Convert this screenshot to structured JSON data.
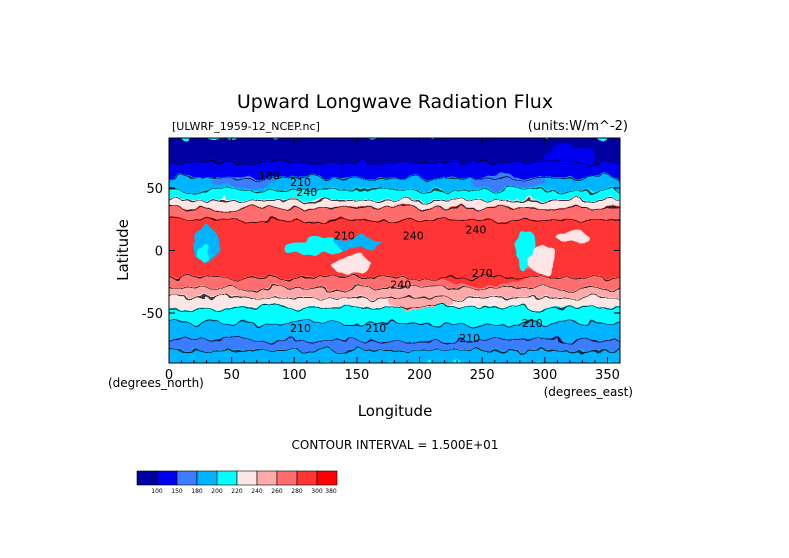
{
  "chart_data": {
    "type": "heatmap",
    "title": "Upward Longwave Radiation Flux",
    "source_label": "[ULWRF_1959-12_NCEP.nc]",
    "units_label": "(units:W/m^-2)",
    "xlabel": "Longitude",
    "ylabel": "Latitude",
    "x_unit_label": "(degrees_east)",
    "y_unit_label": "(degrees_north)",
    "xlim": [
      0,
      360
    ],
    "ylim": [
      -90,
      90
    ],
    "x_ticks": [
      0,
      50,
      100,
      150,
      200,
      250,
      300,
      350
    ],
    "y_ticks": [
      -50,
      0,
      50
    ],
    "contour_interval_text": "CONTOUR INTERVAL = 1.500E+01",
    "contour_labels": [
      {
        "text": "180",
        "lon": 80,
        "lat": 60
      },
      {
        "text": "210",
        "lon": 105,
        "lat": 55
      },
      {
        "text": "240",
        "lon": 110,
        "lat": 47
      },
      {
        "text": "210",
        "lon": 140,
        "lat": 12
      },
      {
        "text": "240",
        "lon": 195,
        "lat": 12
      },
      {
        "text": "240",
        "lon": 245,
        "lat": 17
      },
      {
        "text": "270",
        "lon": 250,
        "lat": -18
      },
      {
        "text": "240",
        "lon": 185,
        "lat": -27
      },
      {
        "text": "210",
        "lon": 105,
        "lat": -62
      },
      {
        "text": "210",
        "lon": 165,
        "lat": -62
      },
      {
        "text": "210",
        "lon": 290,
        "lat": -58
      },
      {
        "text": "210",
        "lon": 240,
        "lat": -70
      }
    ],
    "colorbar": {
      "levels": [
        "100",
        "150",
        "180",
        "200",
        "220",
        "240",
        "260",
        "280",
        "300",
        "380"
      ],
      "colors": [
        "#0000a0",
        "#0000f0",
        "#3a7dff",
        "#00b4ff",
        "#00ffff",
        "#ffe6e6",
        "#ffaaaa",
        "#ff6e6e",
        "#ff3434",
        "#ff0000"
      ]
    },
    "bands": [
      {
        "lat_top": 90,
        "lat_bottom": 70,
        "color": "#0000a0"
      },
      {
        "lat_top": 70,
        "lat_bottom": 58,
        "color": "#0000f0"
      },
      {
        "lat_top": 58,
        "lat_bottom": 48,
        "color": "#00b4ff"
      },
      {
        "lat_top": 48,
        "lat_bottom": 40,
        "color": "#00ffff"
      },
      {
        "lat_top": 40,
        "lat_bottom": 34,
        "color": "#ffe6e6"
      },
      {
        "lat_top": 34,
        "lat_bottom": 24,
        "color": "#ff6e6e"
      },
      {
        "lat_top": 24,
        "lat_bottom": -22,
        "color": "#ff3434"
      },
      {
        "lat_top": -22,
        "lat_bottom": -30,
        "color": "#ff6e6e"
      },
      {
        "lat_top": -30,
        "lat_bottom": -38,
        "color": "#ffaaaa"
      },
      {
        "lat_top": -38,
        "lat_bottom": -46,
        "color": "#ffe6e6"
      },
      {
        "lat_top": -46,
        "lat_bottom": -58,
        "color": "#00ffff"
      },
      {
        "lat_top": -58,
        "lat_bottom": -72,
        "color": "#00b4ff"
      },
      {
        "lat_top": -72,
        "lat_bottom": -80,
        "color": "#3a7dff"
      },
      {
        "lat_top": -80,
        "lat_bottom": -90,
        "color": "#00b4ff"
      }
    ],
    "patches": [
      {
        "lon": 30,
        "lat": 5,
        "rlon": 10,
        "rlat": 14,
        "color": "#00b4ff"
      },
      {
        "lon": 28,
        "lat": -2,
        "rlon": 5,
        "rlat": 6,
        "color": "#00ffff"
      },
      {
        "lon": 115,
        "lat": 3,
        "rlon": 22,
        "rlat": 7,
        "color": "#00ffff"
      },
      {
        "lon": 150,
        "lat": 6,
        "rlon": 20,
        "rlat": 5,
        "color": "#00b4ff"
      },
      {
        "lon": 145,
        "lat": -12,
        "rlon": 15,
        "rlat": 8,
        "color": "#ffe6e6"
      },
      {
        "lon": 250,
        "lat": -12,
        "rlon": 45,
        "rlat": 16,
        "color": "#ff3434"
      },
      {
        "lon": 285,
        "lat": 2,
        "rlon": 8,
        "rlat": 15,
        "color": "#00ffff"
      },
      {
        "lon": 298,
        "lat": -8,
        "rlon": 10,
        "rlat": 12,
        "color": "#ffe6e6"
      },
      {
        "lon": 325,
        "lat": 10,
        "rlon": 14,
        "rlat": 5,
        "color": "#ffe6e6"
      },
      {
        "lon": 200,
        "lat": -40,
        "rlon": 25,
        "rlat": 8,
        "color": "#ffaaaa"
      },
      {
        "lon": 320,
        "lat": 75,
        "rlon": 20,
        "rlat": 8,
        "color": "#0000f0"
      },
      {
        "lon": 270,
        "lat": 55,
        "rlon": 30,
        "rlat": 6,
        "color": "#3a7dff"
      },
      {
        "lon": 60,
        "lat": 55,
        "rlon": 25,
        "rlat": 5,
        "color": "#3a7dff"
      }
    ]
  }
}
